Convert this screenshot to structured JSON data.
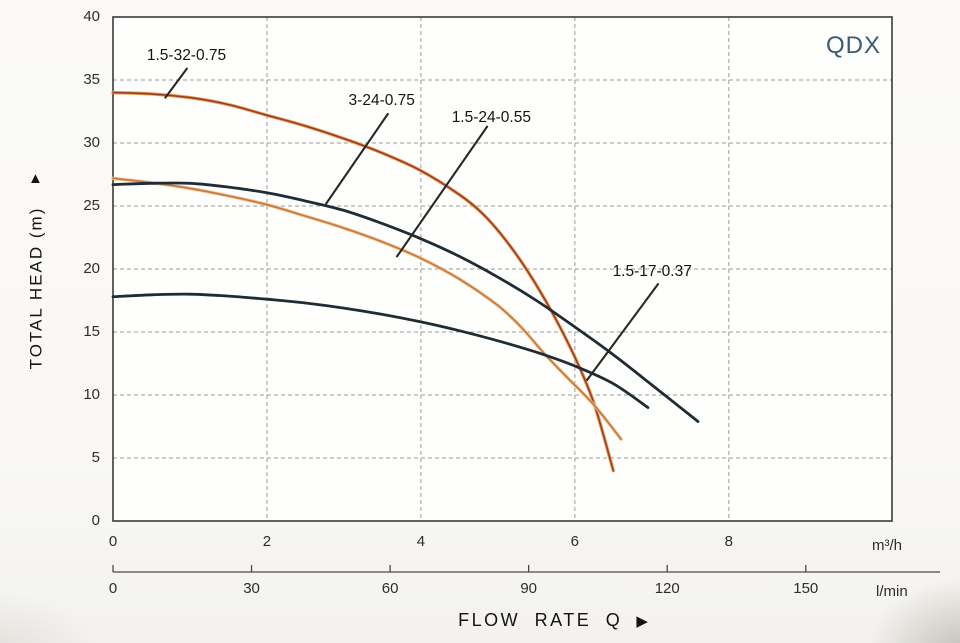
{
  "header": {
    "brand": "QDX",
    "brand_color": "#3c5a70"
  },
  "y_axis": {
    "title": "TOTAL HEAD (m)",
    "arrow_glyph": "▲"
  },
  "x_axis_title": {
    "label": "FLOW RATE  Q",
    "arrow_glyph": "▶"
  },
  "colors": {
    "plot_background": "#fefefc",
    "plot_border": "#3b3b3b",
    "grid": "#9b9b9b",
    "secondary_axis": "#4a4a4a",
    "leader_line": "#282828",
    "tick_text": "#2d2d2d"
  },
  "chart_data": {
    "type": "line",
    "title": "QDX",
    "xlabel": "FLOW RATE Q",
    "ylabel": "TOTAL HEAD (m)",
    "ylim": [
      0,
      40
    ],
    "yticks": [
      0,
      5,
      10,
      15,
      20,
      25,
      30,
      35,
      40
    ],
    "xlim_m3h": [
      0,
      10.12
    ],
    "grid": "dashed, horizontal every 5 m, vertical every 2 m³/h",
    "legend_position": "inline labels with leader lines",
    "x_units": [
      {
        "unit": "m³/h",
        "ticks": [
          0,
          2,
          4,
          6,
          8
        ]
      },
      {
        "unit": "l/min",
        "ticks": [
          0,
          30,
          60,
          90,
          120,
          150
        ],
        "lmin_per_m3h": 16.667
      }
    ],
    "series": [
      {
        "name": "1.5-32-0.75",
        "color": "#9e3b26",
        "halo": "#e09a4e",
        "points": [
          [
            0,
            34.0
          ],
          [
            0.5,
            33.9
          ],
          [
            1,
            33.6
          ],
          [
            1.5,
            33.05
          ],
          [
            2,
            32.2
          ],
          [
            2.5,
            31.35
          ],
          [
            3,
            30.35
          ],
          [
            3.5,
            29.2
          ],
          [
            4,
            27.8
          ],
          [
            4.5,
            25.9
          ],
          [
            4.8,
            24.4
          ],
          [
            5.1,
            22.3
          ],
          [
            5.4,
            19.7
          ],
          [
            5.7,
            16.6
          ],
          [
            6.0,
            13.0
          ],
          [
            6.25,
            9.3
          ],
          [
            6.5,
            4.0
          ]
        ]
      },
      {
        "name": "3-24-0.75",
        "color": "#1f2c36",
        "halo": null,
        "points": [
          [
            0,
            26.7
          ],
          [
            0.5,
            26.8
          ],
          [
            1,
            26.8
          ],
          [
            1.5,
            26.5
          ],
          [
            2,
            26.05
          ],
          [
            2.5,
            25.4
          ],
          [
            3,
            24.65
          ],
          [
            3.5,
            23.6
          ],
          [
            4,
            22.4
          ],
          [
            4.5,
            21.0
          ],
          [
            5,
            19.35
          ],
          [
            5.5,
            17.5
          ],
          [
            6,
            15.4
          ],
          [
            6.5,
            13.2
          ],
          [
            7,
            10.8
          ],
          [
            7.6,
            7.9
          ]
        ]
      },
      {
        "name": "1.5-24-0.55",
        "color": "#c4763c",
        "halo": "#eec08c",
        "points": [
          [
            0,
            27.2
          ],
          [
            0.5,
            26.85
          ],
          [
            1,
            26.4
          ],
          [
            1.5,
            25.8
          ],
          [
            2,
            25.1
          ],
          [
            2.5,
            24.2
          ],
          [
            3,
            23.25
          ],
          [
            3.5,
            22.15
          ],
          [
            4,
            20.85
          ],
          [
            4.5,
            19.2
          ],
          [
            5,
            17.1
          ],
          [
            5.3,
            15.4
          ],
          [
            5.6,
            13.3
          ],
          [
            5.9,
            11.4
          ],
          [
            6.25,
            9.2
          ],
          [
            6.6,
            6.5
          ]
        ]
      },
      {
        "name": "1.5-17-0.37",
        "color": "#1f2c36",
        "halo": null,
        "points": [
          [
            0,
            17.8
          ],
          [
            0.5,
            17.95
          ],
          [
            1,
            18.0
          ],
          [
            1.5,
            17.85
          ],
          [
            2,
            17.6
          ],
          [
            2.5,
            17.3
          ],
          [
            3,
            16.9
          ],
          [
            3.5,
            16.4
          ],
          [
            4,
            15.8
          ],
          [
            4.5,
            15.1
          ],
          [
            5,
            14.3
          ],
          [
            5.5,
            13.4
          ],
          [
            6,
            12.3
          ],
          [
            6.5,
            10.9
          ],
          [
            6.95,
            9.0
          ]
        ]
      }
    ],
    "annotations": [
      {
        "label": "1.5-32-0.75",
        "text_at": [
          0.44,
          36.9
        ],
        "leader": [
          [
            0.96,
            35.9
          ],
          [
            0.68,
            33.6
          ]
        ]
      },
      {
        "label": "3-24-0.75",
        "text_at": [
          3.06,
          33.3
        ],
        "leader": [
          [
            3.57,
            32.3
          ],
          [
            2.77,
            25.2
          ]
        ]
      },
      {
        "label": "1.5-24-0.55",
        "text_at": [
          4.4,
          32.0
        ],
        "leader": [
          [
            4.86,
            31.3
          ],
          [
            3.69,
            21.0
          ]
        ]
      },
      {
        "label": "1.5-17-0.37",
        "text_at": [
          6.49,
          19.8
        ],
        "leader": [
          [
            7.08,
            18.8
          ],
          [
            6.16,
            11.2
          ]
        ]
      }
    ]
  }
}
